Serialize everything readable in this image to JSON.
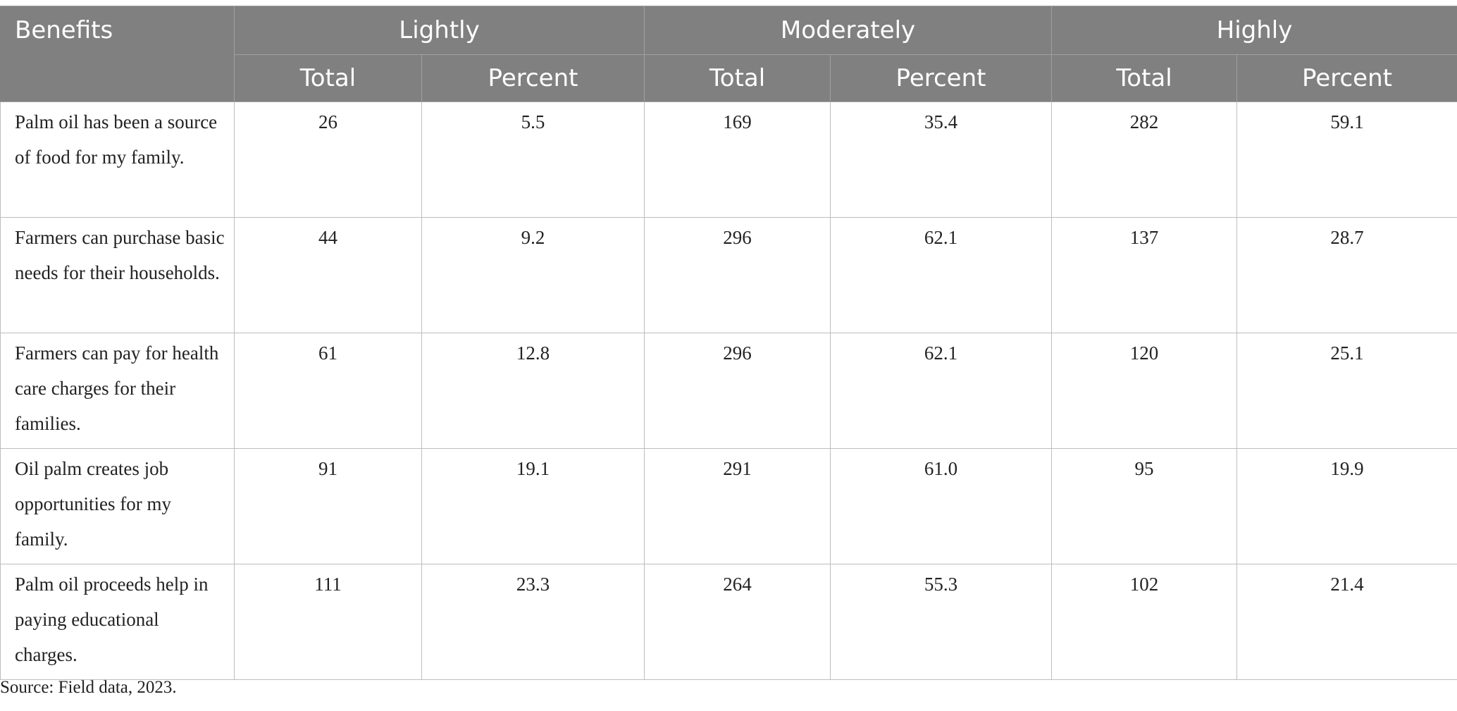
{
  "table": {
    "header": {
      "benefits": "Benefits",
      "groups": [
        "Lightly",
        "Moderately",
        "Highly"
      ],
      "subcolumns": [
        "Total",
        "Percent",
        "Total",
        "Percent",
        "Total",
        "Percent"
      ]
    },
    "rows": [
      {
        "benefit": "Palm oil has been a source of food for my family.",
        "values": [
          "26",
          "5.5",
          "169",
          "35.4",
          "282",
          "59.1"
        ]
      },
      {
        "benefit": "Farmers can purchase basic needs for their households.",
        "values": [
          "44",
          "9.2",
          "296",
          "62.1",
          "137",
          "28.7"
        ]
      },
      {
        "benefit": "Farmers can pay for health care charges for their families.",
        "values": [
          "61",
          "12.8",
          "296",
          "62.1",
          "120",
          "25.1"
        ]
      },
      {
        "benefit": "Oil palm creates job opportunities for my family.",
        "values": [
          "91",
          "19.1",
          "291",
          "61.0",
          "95",
          "19.9"
        ]
      },
      {
        "benefit": "Palm oil proceeds help in paying educational charges.",
        "values": [
          "111",
          "23.3",
          "264",
          "55.3",
          "102",
          "21.4"
        ]
      }
    ]
  },
  "source": "Source: Field data, 2023.",
  "colors": {
    "header_bg": "#808080",
    "header_text": "#ffffff",
    "border": "#bdbdbd"
  }
}
